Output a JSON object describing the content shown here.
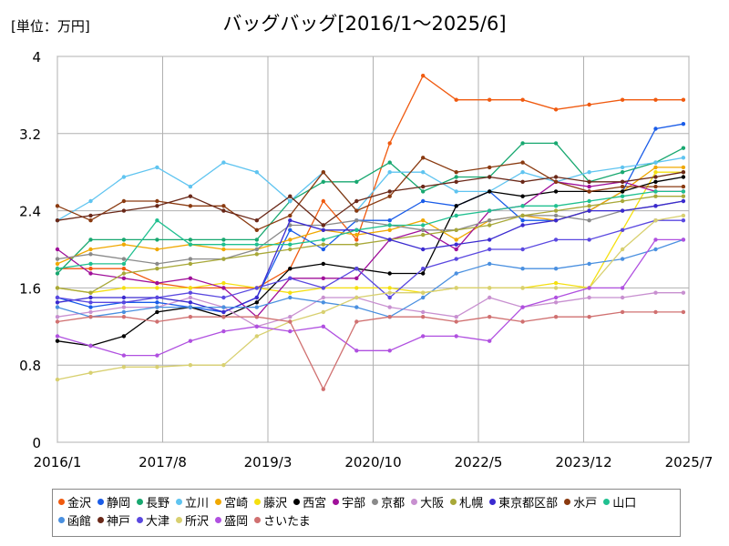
{
  "unit_label": "[単位：万円]",
  "chart_data": {
    "type": "line",
    "title": "バッグバッグ[2016/1～2025/6]",
    "xlabel": "",
    "ylabel": "",
    "ylim": [
      0,
      4
    ],
    "yticks": [
      "0",
      "0.8",
      "1.6",
      "2.4",
      "3.2",
      "4"
    ],
    "x_range": [
      "2016/1",
      "2025/7"
    ],
    "xticks": [
      "2016/1",
      "2017/8",
      "2019/3",
      "2020/10",
      "2022/5",
      "2023/12",
      "2025/7"
    ],
    "grid": true,
    "legend_position": "bottom",
    "x": [
      "2016/1",
      "2016/7",
      "2017/1",
      "2017/7",
      "2018/1",
      "2018/7",
      "2019/1",
      "2019/7",
      "2020/1",
      "2020/7",
      "2021/1",
      "2021/7",
      "2022/1",
      "2022/7",
      "2023/1",
      "2023/7",
      "2024/1",
      "2024/7",
      "2025/1",
      "2025/6"
    ],
    "series": [
      {
        "name": "金沢",
        "color": "#f05a0f",
        "values": [
          1.8,
          1.8,
          1.8,
          1.65,
          1.6,
          1.6,
          1.6,
          1.8,
          2.5,
          2.1,
          3.1,
          3.8,
          3.55,
          3.55,
          3.55,
          3.45,
          3.5,
          3.55,
          3.55,
          3.55
        ]
      },
      {
        "name": "静岡",
        "color": "#1a5ce8",
        "values": [
          1.5,
          1.4,
          1.45,
          1.45,
          1.4,
          1.35,
          1.5,
          2.2,
          2.0,
          2.3,
          2.3,
          2.5,
          2.45,
          2.6,
          2.3,
          2.3,
          2.4,
          2.6,
          3.25,
          3.3
        ]
      },
      {
        "name": "長野",
        "color": "#18a870",
        "values": [
          1.75,
          2.1,
          2.1,
          2.1,
          2.1,
          2.1,
          2.1,
          2.5,
          2.7,
          2.7,
          2.9,
          2.6,
          2.75,
          2.75,
          3.1,
          3.1,
          2.7,
          2.8,
          2.9,
          3.05
        ]
      },
      {
        "name": "立川",
        "color": "#5fc4f0",
        "values": [
          2.3,
          2.5,
          2.75,
          2.85,
          2.65,
          2.9,
          2.8,
          2.5,
          2.8,
          2.4,
          2.8,
          2.8,
          2.6,
          2.6,
          2.8,
          2.7,
          2.8,
          2.85,
          2.9,
          2.95
        ]
      },
      {
        "name": "宮崎",
        "color": "#f0a800",
        "values": [
          1.85,
          2.0,
          2.05,
          2.0,
          2.05,
          2.0,
          2.0,
          2.1,
          2.2,
          2.15,
          2.2,
          2.3,
          2.1,
          2.3,
          2.35,
          2.3,
          2.4,
          2.6,
          2.85,
          2.85
        ]
      },
      {
        "name": "藤沢",
        "color": "#f5e010",
        "values": [
          1.6,
          1.55,
          1.6,
          1.6,
          1.6,
          1.65,
          1.6,
          1.55,
          1.6,
          1.6,
          1.6,
          1.55,
          1.6,
          1.6,
          1.6,
          1.65,
          1.6,
          2.2,
          2.8,
          2.8
        ]
      },
      {
        "name": "西宮",
        "color": "#000000",
        "values": [
          1.05,
          1.0,
          1.1,
          1.35,
          1.4,
          1.3,
          1.45,
          1.8,
          1.85,
          1.8,
          1.75,
          1.75,
          2.45,
          2.6,
          2.55,
          2.6,
          2.6,
          2.6,
          2.7,
          2.75
        ]
      },
      {
        "name": "宇部",
        "color": "#a0109a",
        "values": [
          2.0,
          1.75,
          1.7,
          1.65,
          1.7,
          1.6,
          1.3,
          1.7,
          1.7,
          1.7,
          2.1,
          2.2,
          2.0,
          2.4,
          2.45,
          2.7,
          2.65,
          2.7,
          2.6,
          2.6
        ]
      },
      {
        "name": "京都",
        "color": "#8a8a8a",
        "values": [
          1.9,
          1.95,
          1.9,
          1.85,
          1.9,
          1.9,
          2.0,
          2.25,
          2.25,
          2.3,
          2.25,
          2.2,
          2.2,
          2.3,
          2.35,
          2.35,
          2.3,
          2.4,
          2.45,
          2.5
        ]
      },
      {
        "name": "大阪",
        "color": "#c890d0",
        "values": [
          1.3,
          1.35,
          1.4,
          1.4,
          1.5,
          1.4,
          1.2,
          1.3,
          1.5,
          1.5,
          1.4,
          1.35,
          1.3,
          1.5,
          1.4,
          1.45,
          1.5,
          1.5,
          1.55,
          1.55
        ]
      },
      {
        "name": "札幌",
        "color": "#a8a838",
        "values": [
          1.6,
          1.55,
          1.75,
          1.8,
          1.85,
          1.9,
          1.95,
          2.0,
          2.05,
          2.05,
          2.1,
          2.15,
          2.2,
          2.25,
          2.35,
          2.4,
          2.45,
          2.5,
          2.55,
          2.55
        ]
      },
      {
        "name": "東京都区部",
        "color": "#3a2ad0",
        "values": [
          1.45,
          1.5,
          1.5,
          1.5,
          1.45,
          1.35,
          1.5,
          2.3,
          2.2,
          2.2,
          2.1,
          2.0,
          2.05,
          2.1,
          2.25,
          2.3,
          2.4,
          2.4,
          2.45,
          2.5
        ]
      },
      {
        "name": "水戸",
        "color": "#8a3a10",
        "values": [
          2.45,
          2.3,
          2.5,
          2.5,
          2.45,
          2.45,
          2.2,
          2.35,
          2.8,
          2.4,
          2.55,
          2.95,
          2.8,
          2.85,
          2.9,
          2.7,
          2.6,
          2.65,
          2.65,
          2.65
        ]
      },
      {
        "name": "山口",
        "color": "#20c090",
        "values": [
          1.8,
          1.85,
          1.85,
          2.3,
          2.05,
          2.05,
          2.05,
          2.05,
          2.1,
          2.2,
          2.25,
          2.25,
          2.35,
          2.4,
          2.45,
          2.45,
          2.5,
          2.55,
          2.6,
          2.6
        ]
      },
      {
        "name": "函館",
        "color": "#4a90e0",
        "values": [
          1.4,
          1.3,
          1.35,
          1.4,
          1.4,
          1.4,
          1.4,
          1.5,
          1.45,
          1.4,
          1.3,
          1.5,
          1.75,
          1.85,
          1.8,
          1.8,
          1.85,
          1.9,
          2.0,
          2.1
        ]
      },
      {
        "name": "神戸",
        "color": "#6a2818",
        "values": [
          2.3,
          2.35,
          2.4,
          2.45,
          2.55,
          2.4,
          2.3,
          2.55,
          2.25,
          2.5,
          2.6,
          2.65,
          2.7,
          2.75,
          2.7,
          2.75,
          2.7,
          2.7,
          2.75,
          2.8
        ]
      },
      {
        "name": "大津",
        "color": "#5a48e0",
        "values": [
          1.5,
          1.45,
          1.45,
          1.5,
          1.55,
          1.5,
          1.6,
          1.7,
          1.6,
          1.8,
          1.5,
          1.8,
          1.9,
          2.0,
          2.0,
          2.1,
          2.1,
          2.2,
          2.3,
          2.3
        ]
      },
      {
        "name": "所沢",
        "color": "#d8d070",
        "values": [
          0.65,
          0.72,
          0.78,
          0.78,
          0.8,
          0.8,
          1.1,
          1.25,
          1.35,
          1.5,
          1.55,
          1.55,
          1.6,
          1.6,
          1.6,
          1.6,
          1.6,
          2.0,
          2.3,
          2.35
        ]
      },
      {
        "name": "盛岡",
        "color": "#b050e0",
        "values": [
          1.1,
          1.0,
          0.9,
          0.9,
          1.05,
          1.15,
          1.2,
          1.15,
          1.2,
          0.95,
          0.95,
          1.1,
          1.1,
          1.05,
          1.4,
          1.5,
          1.6,
          1.6,
          2.1,
          2.1
        ]
      },
      {
        "name": "さいたま",
        "color": "#d07070",
        "values": [
          1.25,
          1.3,
          1.3,
          1.25,
          1.3,
          1.3,
          1.3,
          1.25,
          0.55,
          1.25,
          1.3,
          1.3,
          1.25,
          1.3,
          1.25,
          1.3,
          1.3,
          1.35,
          1.35,
          1.35
        ]
      }
    ]
  }
}
